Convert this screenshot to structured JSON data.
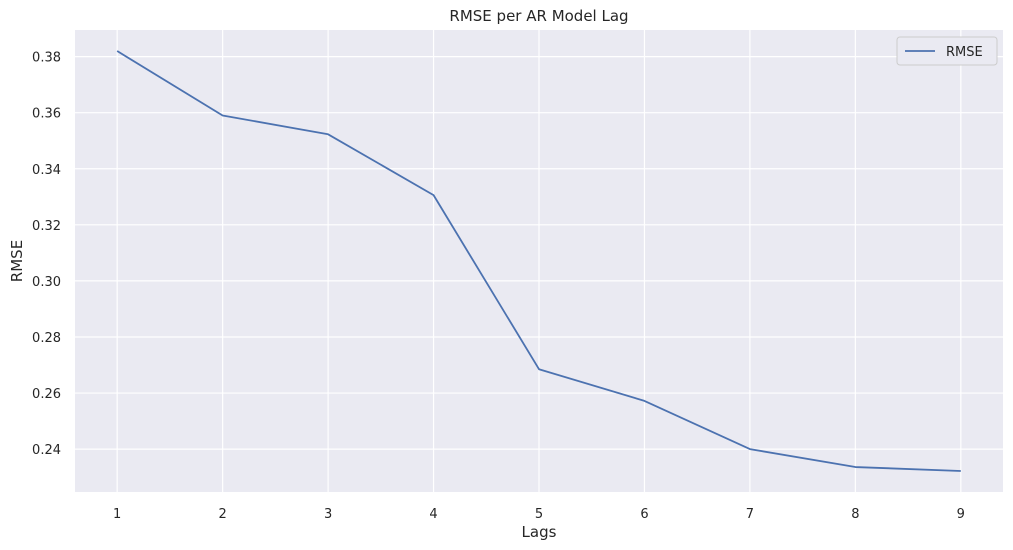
{
  "chart_data": {
    "type": "line",
    "title": "RMSE per AR Model Lag",
    "xlabel": "Lags",
    "ylabel": "RMSE",
    "x": [
      1,
      2,
      3,
      4,
      5,
      6,
      7,
      8,
      9
    ],
    "series": [
      {
        "name": "RMSE",
        "color": "#4c72b0",
        "values": [
          0.382,
          0.359,
          0.3523,
          0.3306,
          0.2685,
          0.2572,
          0.24,
          0.2336,
          0.2322
        ]
      }
    ],
    "xlim": [
      0.6,
      9.4
    ],
    "ylim": [
      0.2247,
      0.3895
    ],
    "xticks": [
      1,
      2,
      3,
      4,
      5,
      6,
      7,
      8,
      9
    ],
    "yticks": [
      0.24,
      0.26,
      0.28,
      0.3,
      0.32,
      0.34,
      0.36,
      0.38
    ],
    "ytick_labels": [
      "0.24",
      "0.26",
      "0.28",
      "0.30",
      "0.32",
      "0.34",
      "0.36",
      "0.38"
    ],
    "grid": true,
    "legend_position": "top-right",
    "background_color": "#eaeaf2",
    "grid_color": "#ffffff"
  }
}
